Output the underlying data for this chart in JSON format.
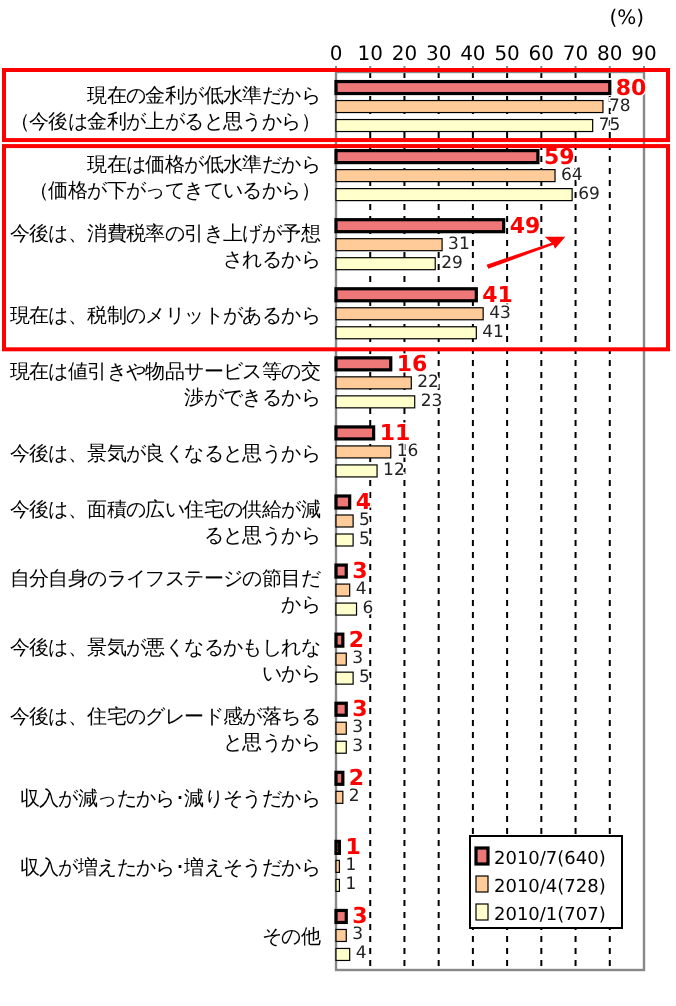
{
  "chart_data": {
    "type": "bar",
    "orientation": "horizontal",
    "xlabel": "(%)",
    "categories": [
      "現在の金利が低水準だから（今後は金利が上がると思うから）",
      "現在は価格が低水準だから（価格が下がってきているから）",
      "今後は、消費税率の引き上げが予想されるから",
      "現在は、税制のメリットがあるから",
      "現在は値引きや物品サービス等の交渉ができるから",
      "今後は、景気が良くなると思うから",
      "今後は、面積の広い住宅の供給が減ると思うから",
      "自分自身のライフステージの節目だから",
      "今後は、景気が悪くなるかもしれないから",
      "今後は、住宅のグレード感が落ちると思うから",
      "収入が減ったから･減りそうだから",
      "収入が増えたから･増えそうだから",
      "その他"
    ],
    "series": [
      {
        "name": "2010/7(640)",
        "color": "#ee7777",
        "values": [
          80,
          59,
          49,
          41,
          16,
          11,
          4,
          3,
          2,
          3,
          2,
          1,
          3
        ]
      },
      {
        "name": "2010/4(728)",
        "color": "#ffcc99",
        "values": [
          78,
          64,
          31,
          43,
          22,
          16,
          5,
          4,
          3,
          3,
          2,
          1,
          3
        ]
      },
      {
        "name": "2010/1(707)",
        "color": "#ffffcc",
        "values": [
          75,
          69,
          29,
          41,
          23,
          12,
          5,
          6,
          5,
          3,
          null,
          1,
          4
        ]
      }
    ],
    "xlim": [
      0,
      90
    ],
    "xticks": [
      0,
      10,
      20,
      30,
      40,
      50,
      60,
      70,
      80,
      90
    ],
    "grid": "x",
    "data_labels": true,
    "legend": "bottom right"
  }
}
